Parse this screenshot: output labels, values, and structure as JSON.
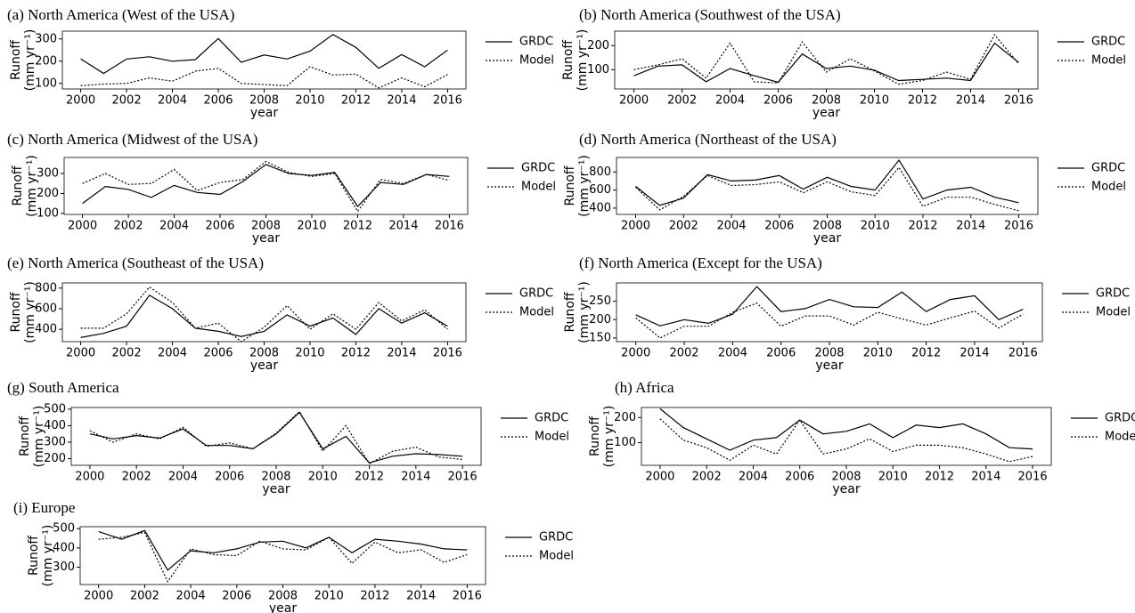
{
  "chart_data": [
    {
      "type": "line",
      "title": "(a) North America (West of the USA)",
      "xlabel": "year",
      "ylabel": [
        "Runoff",
        "(mm yr⁻¹)"
      ],
      "x": [
        2000,
        2001,
        2002,
        2003,
        2004,
        2005,
        2006,
        2007,
        2008,
        2009,
        2010,
        2011,
        2012,
        2013,
        2014,
        2015,
        2016
      ],
      "xlim": [
        1999.2,
        2016.8
      ],
      "xticks": [
        2000,
        2002,
        2004,
        2006,
        2008,
        2010,
        2012,
        2014,
        2016
      ],
      "ylim": [
        75,
        335
      ],
      "yticks": [
        100,
        200,
        300
      ],
      "series": [
        {
          "name": "GRDC",
          "color": "#000000",
          "linestyle": "solid",
          "values": [
            210,
            145,
            210,
            220,
            200,
            207,
            302,
            195,
            228,
            210,
            245,
            320,
            262,
            168,
            230,
            175,
            250
          ]
        },
        {
          "name": "Model",
          "color": "#000000",
          "linestyle": "dotted",
          "values": [
            90,
            97,
            100,
            125,
            110,
            155,
            168,
            100,
            95,
            90,
            175,
            138,
            142,
            80,
            125,
            85,
            140
          ]
        }
      ]
    },
    {
      "type": "line",
      "title": "(b) North America (Southwest of the USA)",
      "xlabel": "year",
      "ylabel": [
        "Runoff",
        "(mm yr⁻¹)"
      ],
      "x": [
        2000,
        2001,
        2002,
        2003,
        2004,
        2005,
        2006,
        2007,
        2008,
        2009,
        2010,
        2011,
        2012,
        2013,
        2014,
        2015,
        2016
      ],
      "xlim": [
        1999.2,
        2016.8
      ],
      "xticks": [
        2000,
        2002,
        2004,
        2006,
        2008,
        2010,
        2012,
        2014,
        2016
      ],
      "ylim": [
        20,
        260
      ],
      "yticks": [
        100,
        200
      ],
      "series": [
        {
          "name": "GRDC",
          "color": "#000000",
          "linestyle": "solid",
          "values": [
            75,
            115,
            120,
            50,
            105,
            75,
            48,
            165,
            105,
            115,
            98,
            55,
            60,
            65,
            55,
            210,
            130
          ]
        },
        {
          "name": "Model",
          "color": "#000000",
          "linestyle": "dotted",
          "values": [
            100,
            120,
            145,
            65,
            210,
            50,
            45,
            215,
            90,
            145,
            95,
            40,
            55,
            90,
            60,
            245,
            125
          ]
        }
      ]
    },
    {
      "type": "line",
      "title": "(c) North America (Midwest of the USA)",
      "xlabel": "year",
      "ylabel": [
        "Runoff",
        "(mm yr⁻¹)"
      ],
      "x": [
        2000,
        2001,
        2002,
        2003,
        2004,
        2005,
        2006,
        2007,
        2008,
        2009,
        2010,
        2011,
        2012,
        2013,
        2014,
        2015,
        2016
      ],
      "xlim": [
        1999.2,
        2016.8
      ],
      "xticks": [
        2000,
        2002,
        2004,
        2006,
        2008,
        2010,
        2012,
        2014,
        2016
      ],
      "ylim": [
        95,
        380
      ],
      "yticks": [
        100,
        200,
        300
      ],
      "series": [
        {
          "name": "GRDC",
          "color": "#000000",
          "linestyle": "solid",
          "values": [
            150,
            235,
            220,
            180,
            240,
            205,
            195,
            260,
            345,
            300,
            290,
            305,
            135,
            255,
            245,
            295,
            285
          ]
        },
        {
          "name": "Model",
          "color": "#000000",
          "linestyle": "dotted",
          "values": [
            250,
            300,
            245,
            250,
            320,
            215,
            255,
            270,
            360,
            305,
            285,
            300,
            110,
            270,
            250,
            295,
            265
          ]
        }
      ]
    },
    {
      "type": "line",
      "title": "(d) North America (Northeast of the USA)",
      "xlabel": "year",
      "ylabel": [
        "Runoff",
        "(mm yr⁻¹)"
      ],
      "x": [
        2000,
        2001,
        2002,
        2003,
        2004,
        2005,
        2006,
        2007,
        2008,
        2009,
        2010,
        2011,
        2012,
        2013,
        2014,
        2015,
        2016
      ],
      "xlim": [
        1999.2,
        2016.8
      ],
      "xticks": [
        2000,
        2002,
        2004,
        2006,
        2008,
        2010,
        2012,
        2014,
        2016
      ],
      "ylim": [
        330,
        960
      ],
      "yticks": [
        400,
        600,
        800
      ],
      "series": [
        {
          "name": "GRDC",
          "color": "#000000",
          "linestyle": "solid",
          "values": [
            640,
            430,
            510,
            770,
            700,
            710,
            760,
            610,
            740,
            640,
            600,
            930,
            500,
            600,
            630,
            520,
            460
          ]
        },
        {
          "name": "Model",
          "color": "#000000",
          "linestyle": "dotted",
          "values": [
            630,
            380,
            530,
            760,
            650,
            660,
            690,
            570,
            690,
            580,
            540,
            850,
            420,
            520,
            520,
            440,
            370
          ]
        }
      ]
    },
    {
      "type": "line",
      "title": "(e) North America (Southeast of the USA)",
      "xlabel": "year",
      "ylabel": [
        "Runoff",
        "(mm yr⁻¹)"
      ],
      "x": [
        2000,
        2001,
        2002,
        2003,
        2004,
        2005,
        2006,
        2007,
        2008,
        2009,
        2010,
        2011,
        2012,
        2013,
        2014,
        2015,
        2016
      ],
      "xlim": [
        1999.2,
        2016.8
      ],
      "xticks": [
        2000,
        2002,
        2004,
        2006,
        2008,
        2010,
        2012,
        2014,
        2016
      ],
      "ylim": [
        280,
        850
      ],
      "yticks": [
        400,
        600,
        800
      ],
      "series": [
        {
          "name": "GRDC",
          "color": "#000000",
          "linestyle": "solid",
          "values": [
            320,
            360,
            430,
            730,
            600,
            410,
            380,
            330,
            380,
            540,
            430,
            510,
            350,
            600,
            460,
            560,
            430
          ]
        },
        {
          "name": "Model",
          "color": "#000000",
          "linestyle": "dotted",
          "values": [
            410,
            410,
            550,
            810,
            660,
            410,
            460,
            280,
            420,
            630,
            400,
            550,
            400,
            660,
            480,
            590,
            400
          ]
        }
      ]
    },
    {
      "type": "line",
      "title": "(f) North America (Except for the USA)",
      "xlabel": "year",
      "ylabel": [
        "Runoff",
        "(mm yr⁻¹)"
      ],
      "x": [
        2000,
        2001,
        2002,
        2003,
        2004,
        2005,
        2006,
        2007,
        2008,
        2009,
        2010,
        2011,
        2012,
        2013,
        2014,
        2015,
        2016
      ],
      "xlim": [
        1999.2,
        2016.8
      ],
      "xticks": [
        2000,
        2002,
        2004,
        2006,
        2008,
        2010,
        2012,
        2014,
        2016
      ],
      "ylim": [
        140,
        300
      ],
      "yticks": [
        150,
        200,
        250
      ],
      "series": [
        {
          "name": "GRDC",
          "color": "#000000",
          "linestyle": "solid",
          "values": [
            213,
            183,
            200,
            190,
            215,
            290,
            222,
            230,
            255,
            235,
            233,
            275,
            222,
            255,
            265,
            200,
            228
          ]
        },
        {
          "name": "Model",
          "color": "#000000",
          "linestyle": "dotted",
          "values": [
            205,
            150,
            182,
            182,
            220,
            245,
            182,
            210,
            210,
            185,
            220,
            202,
            185,
            205,
            223,
            177,
            215
          ]
        }
      ]
    },
    {
      "type": "line",
      "title": "(g) South America",
      "xlabel": "year",
      "ylabel": [
        "Runoff",
        "(mm yr⁻¹)"
      ],
      "x": [
        2000,
        2001,
        2002,
        2003,
        2004,
        2005,
        2006,
        2007,
        2008,
        2009,
        2010,
        2011,
        2012,
        2013,
        2014,
        2015,
        2016
      ],
      "xlim": [
        1999.2,
        2016.8
      ],
      "xticks": [
        2000,
        2002,
        2004,
        2006,
        2008,
        2010,
        2012,
        2014,
        2016
      ],
      "ylim": [
        160,
        510
      ],
      "yticks": [
        200,
        300,
        400,
        500
      ],
      "series": [
        {
          "name": "GRDC",
          "color": "#000000",
          "linestyle": "solid",
          "values": [
            350,
            320,
            340,
            325,
            380,
            280,
            280,
            260,
            350,
            480,
            260,
            335,
            175,
            215,
            230,
            225,
            215
          ]
        },
        {
          "name": "Model",
          "color": "#000000",
          "linestyle": "dotted",
          "values": [
            370,
            300,
            350,
            320,
            390,
            275,
            295,
            260,
            355,
            485,
            245,
            400,
            170,
            245,
            270,
            210,
            195
          ]
        }
      ]
    },
    {
      "type": "line",
      "title": "(h) Africa",
      "xlabel": "year",
      "ylabel": [
        "Runoff",
        "(mm yr⁻¹)"
      ],
      "x": [
        2000,
        2001,
        2002,
        2003,
        2004,
        2005,
        2006,
        2007,
        2008,
        2009,
        2010,
        2011,
        2012,
        2013,
        2014,
        2015,
        2016
      ],
      "xlim": [
        1999.2,
        2016.8
      ],
      "xticks": [
        2000,
        2002,
        2004,
        2006,
        2008,
        2010,
        2012,
        2014,
        2016
      ],
      "ylim": [
        10,
        240
      ],
      "yticks": [
        100,
        200
      ],
      "series": [
        {
          "name": "GRDC",
          "color": "#000000",
          "linestyle": "solid",
          "values": [
            235,
            160,
            115,
            70,
            110,
            120,
            190,
            135,
            145,
            175,
            120,
            170,
            160,
            175,
            135,
            80,
            75
          ]
        },
        {
          "name": "Model",
          "color": "#000000",
          "linestyle": "dotted",
          "values": [
            195,
            110,
            80,
            30,
            90,
            55,
            190,
            55,
            75,
            115,
            65,
            90,
            90,
            80,
            55,
            25,
            45
          ]
        }
      ]
    },
    {
      "type": "line",
      "title": "(i) Europe",
      "xlabel": "year",
      "ylabel": [
        "Runoff",
        "(mm yr⁻¹)"
      ],
      "x": [
        2000,
        2001,
        2002,
        2003,
        2004,
        2005,
        2006,
        2007,
        2008,
        2009,
        2010,
        2011,
        2012,
        2013,
        2014,
        2015,
        2016
      ],
      "xlim": [
        1999.2,
        2016.8
      ],
      "xticks": [
        2000,
        2002,
        2004,
        2006,
        2008,
        2010,
        2012,
        2014,
        2016
      ],
      "ylim": [
        210,
        510
      ],
      "yticks": [
        300,
        400,
        500
      ],
      "series": [
        {
          "name": "GRDC",
          "color": "#000000",
          "linestyle": "solid",
          "values": [
            485,
            445,
            490,
            285,
            385,
            375,
            395,
            430,
            435,
            400,
            455,
            375,
            445,
            435,
            420,
            395,
            390
          ]
        },
        {
          "name": "Model",
          "color": "#000000",
          "linestyle": "dotted",
          "values": [
            445,
            455,
            480,
            225,
            395,
            365,
            360,
            435,
            395,
            390,
            455,
            320,
            430,
            375,
            390,
            325,
            365
          ]
        }
      ]
    }
  ]
}
